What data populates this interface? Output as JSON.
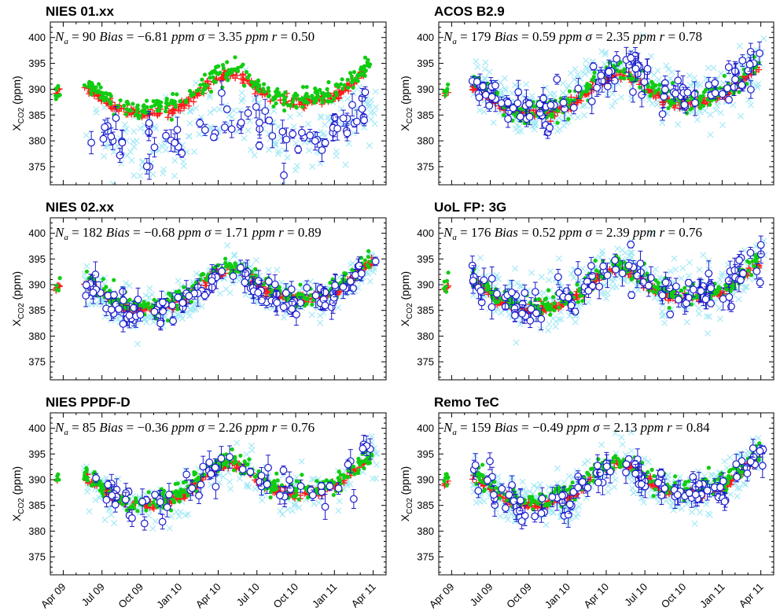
{
  "figure": {
    "ylabel_main": "X",
    "ylabel_sub": "CO2",
    "ylabel_unit": " (ppm)",
    "x_ticks": [
      "Apr 09",
      "Jul 09",
      "Oct 09",
      "Jan 10",
      "Apr 10",
      "Jul 10",
      "Oct 10",
      "Jan 11",
      "Apr 11"
    ],
    "y_ticks": [
      "375",
      "380",
      "385",
      "390",
      "395",
      "400"
    ],
    "colors": {
      "model": "#ff1a1a",
      "tccon": "#11cc11",
      "satellite": "#9fe8f5",
      "mean_marker": "#1a1acc"
    }
  },
  "chart_data": [
    {
      "type": "scatter",
      "title": "NIES 01.xx",
      "stats": {
        "na_label": "N",
        "na_sub": "a",
        "na": "= 90",
        "bias_label": "Bias",
        "bias": "= −6.81",
        "sigma_label": "σ",
        "sigma": "= 3.35",
        "unit": "ppm",
        "r_label": "r",
        "r": "= 0.50"
      },
      "ylim": [
        371.5,
        403
      ],
      "xlim": [
        -1,
        25
      ],
      "grid": false,
      "mean_offset": -7.0,
      "spread": 3.3,
      "coverage": "sparse"
    },
    {
      "type": "scatter",
      "title": "ACOS B2.9",
      "stats": {
        "na_label": "N",
        "na_sub": "a",
        "na": "= 179",
        "bias_label": "Bias",
        "bias": "= 0.59",
        "sigma_label": "σ",
        "sigma": "= 2.35",
        "unit": "ppm",
        "r_label": "r",
        "r": "= 0.78"
      },
      "ylim": [
        371.5,
        403
      ],
      "xlim": [
        -1,
        25
      ],
      "grid": false,
      "mean_offset": 0.6,
      "spread": 2.3,
      "coverage": "dense"
    },
    {
      "type": "scatter",
      "title": "NIES 02.xx",
      "stats": {
        "na_label": "N",
        "na_sub": "a",
        "na": "= 182",
        "bias_label": "Bias",
        "bias": "= −0.68",
        "sigma_label": "σ",
        "sigma": "= 1.71",
        "unit": "ppm",
        "r_label": "r",
        "r": "= 0.89"
      },
      "ylim": [
        371.5,
        403
      ],
      "xlim": [
        -1,
        25
      ],
      "grid": false,
      "mean_offset": -0.7,
      "spread": 1.7,
      "coverage": "dense"
    },
    {
      "type": "scatter",
      "title": "UoL FP: 3G",
      "stats": {
        "na_label": "N",
        "na_sub": "a",
        "na": "= 176",
        "bias_label": "Bias",
        "bias": "= 0.52",
        "sigma_label": "σ",
        "sigma": "= 2.39",
        "unit": "ppm",
        "r_label": "r",
        "r": "= 0.76"
      },
      "ylim": [
        371.5,
        403
      ],
      "xlim": [
        -1,
        25
      ],
      "grid": false,
      "mean_offset": 0.5,
      "spread": 2.4,
      "coverage": "dense"
    },
    {
      "type": "scatter",
      "title": "NIES PPDF-D",
      "stats": {
        "na_label": "N",
        "na_sub": "a",
        "na": "= 85",
        "bias_label": "Bias",
        "bias": "= −0.36",
        "sigma_label": "σ",
        "sigma": "= 2.26",
        "unit": "ppm",
        "r_label": "r",
        "r": "= 0.76"
      },
      "ylim": [
        371.5,
        403
      ],
      "xlim": [
        -1,
        25
      ],
      "grid": false,
      "mean_offset": -0.4,
      "spread": 2.2,
      "coverage": "sparse"
    },
    {
      "type": "scatter",
      "title": "Remo TeC",
      "stats": {
        "na_label": "N",
        "na_sub": "a",
        "na": "= 159",
        "bias_label": "Bias",
        "bias": "= −0.49",
        "sigma_label": "σ",
        "sigma": "= 2.13",
        "unit": "ppm",
        "r_label": "r",
        "r": "= 0.84"
      },
      "ylim": [
        371.5,
        403
      ],
      "xlim": [
        -1,
        25
      ],
      "grid": false,
      "mean_offset": -0.5,
      "spread": 2.1,
      "coverage": "dense"
    }
  ]
}
